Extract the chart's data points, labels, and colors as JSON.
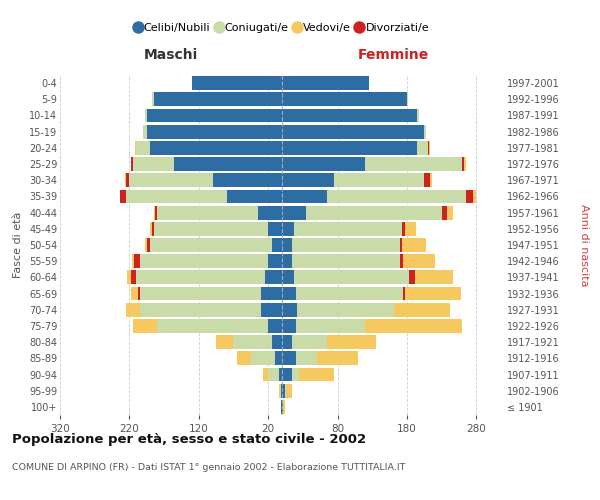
{
  "age_groups": [
    "100+",
    "95-99",
    "90-94",
    "85-89",
    "80-84",
    "75-79",
    "70-74",
    "65-69",
    "60-64",
    "55-59",
    "50-54",
    "45-49",
    "40-44",
    "35-39",
    "30-34",
    "25-29",
    "20-24",
    "15-19",
    "10-14",
    "5-9",
    "0-4"
  ],
  "birth_years": [
    "≤ 1901",
    "1902-1906",
    "1907-1911",
    "1912-1916",
    "1917-1921",
    "1922-1926",
    "1927-1931",
    "1932-1936",
    "1937-1941",
    "1942-1946",
    "1947-1951",
    "1952-1956",
    "1957-1961",
    "1962-1966",
    "1967-1971",
    "1972-1976",
    "1977-1981",
    "1982-1986",
    "1987-1991",
    "1992-1996",
    "1997-2001"
  ],
  "maschi_celibi": [
    1,
    1,
    5,
    10,
    15,
    20,
    30,
    30,
    25,
    20,
    15,
    20,
    35,
    80,
    100,
    155,
    190,
    195,
    195,
    185,
    130
  ],
  "maschi_coniugati": [
    1,
    2,
    15,
    35,
    55,
    160,
    175,
    175,
    185,
    185,
    175,
    165,
    145,
    145,
    120,
    60,
    20,
    5,
    3,
    2,
    0
  ],
  "maschi_vedovi": [
    0,
    2,
    8,
    20,
    25,
    35,
    20,
    10,
    5,
    3,
    2,
    2,
    1,
    1,
    1,
    1,
    1,
    0,
    0,
    0,
    0
  ],
  "maschi_divorziati": [
    0,
    0,
    0,
    0,
    0,
    0,
    0,
    3,
    8,
    8,
    5,
    3,
    3,
    8,
    5,
    2,
    1,
    0,
    0,
    0,
    0
  ],
  "femmine_celibi": [
    2,
    4,
    15,
    20,
    15,
    20,
    22,
    20,
    18,
    15,
    15,
    18,
    35,
    65,
    75,
    120,
    195,
    205,
    195,
    180,
    125
  ],
  "femmine_coniugati": [
    0,
    2,
    10,
    30,
    50,
    100,
    140,
    155,
    165,
    155,
    155,
    155,
    195,
    200,
    130,
    140,
    15,
    3,
    2,
    1,
    0
  ],
  "femmine_vedovi": [
    2,
    8,
    50,
    60,
    70,
    140,
    80,
    80,
    55,
    45,
    35,
    15,
    8,
    5,
    3,
    2,
    1,
    0,
    0,
    0,
    0
  ],
  "femmine_divorziati": [
    0,
    0,
    0,
    0,
    0,
    0,
    0,
    3,
    8,
    5,
    3,
    5,
    8,
    10,
    8,
    3,
    2,
    0,
    0,
    0,
    0
  ],
  "colors": {
    "celibi": "#2e6da4",
    "coniugati": "#c8dba8",
    "vedovi": "#f5c860",
    "divorziati": "#cc2222"
  },
  "xlim": 320,
  "title": "Popolazione per età, sesso e stato civile - 2002",
  "subtitle": "COMUNE DI ARPINO (FR) - Dati ISTAT 1° gennaio 2002 - Elaborazione TUTTITALIA.IT",
  "ylabel_left": "Fasce di età",
  "ylabel_right": "Anni di nascita",
  "xlabel_left": "Maschi",
  "xlabel_right": "Femmine",
  "bg_color": "#ffffff",
  "grid_color": "#cccccc",
  "legend_labels": [
    "Celibi/Nubili",
    "Coniugati/e",
    "Vedovi/e",
    "Divorziati/e"
  ]
}
